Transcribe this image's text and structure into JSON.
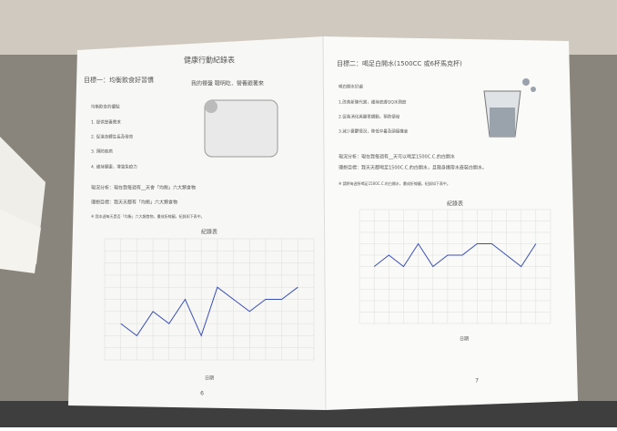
{
  "left_page": {
    "title": "健康行動紀錄表",
    "goal": "目標一：均衡飲食好習慣",
    "plate": "我的餐盤 聰明吃．營養跟著來",
    "benefits": [
      "均衡飲食的優點",
      "1. 提供營養需求",
      "2. 促進身體生長及發育",
      "3. 預防疾病",
      "4. 維持健康，增強免疫力"
    ],
    "status": "現況分析：現在我每週有__天會「均衡」六大類食物",
    "target": "理想目標：我天天都有「均衡」六大類食物",
    "note": "※ 我本週每天是否「均衡」六大類食物，畫成折線圖，紀錄如下表中。",
    "page_number": "6"
  },
  "right_page": {
    "goal": "目標二：喝足白開水(1500CC 或6杯馬克杯)",
    "benefits": [
      "喝白開水好處",
      "1.改善新陳代謝，維持皮膚QQ水潤度",
      "2.促進消化與腸胃蠕動，預防便祕",
      "3.減少憂鬱情況，降低中暑及頭痛機會"
    ],
    "status": "現況分析：現在我每週有__天可以喝足1500C.C.的白開水",
    "target": "理想目標：我天天都喝足1500C.C.的白開水，且隨身攜帶水壺裝白開水。",
    "note": "※ 請將每週所喝足1500C.C.的白開水，畫成折線圖，紀錄如下表中。",
    "page_number": "7"
  },
  "chart_data": [
    {
      "type": "line",
      "title": "紀錄表",
      "xlabel": "日期",
      "color": "#3a4fb8",
      "categories": [
        null,
        null,
        null,
        null,
        null,
        null,
        null,
        null,
        null,
        null,
        null,
        null
      ],
      "values": [
        3,
        2,
        4,
        3,
        5,
        2,
        6,
        5,
        4,
        5,
        5,
        6
      ],
      "ylim": [
        0,
        10
      ]
    },
    {
      "type": "line",
      "title": "紀錄表",
      "xlabel": "日期",
      "color": "#3a4fb8",
      "categories": [
        null,
        null,
        null,
        null,
        null,
        null,
        null,
        null,
        null,
        null,
        null,
        null
      ],
      "values": [
        5,
        6,
        5,
        7,
        5,
        6,
        6,
        7,
        7,
        6,
        5,
        7
      ],
      "ylim": [
        0,
        10
      ]
    }
  ]
}
